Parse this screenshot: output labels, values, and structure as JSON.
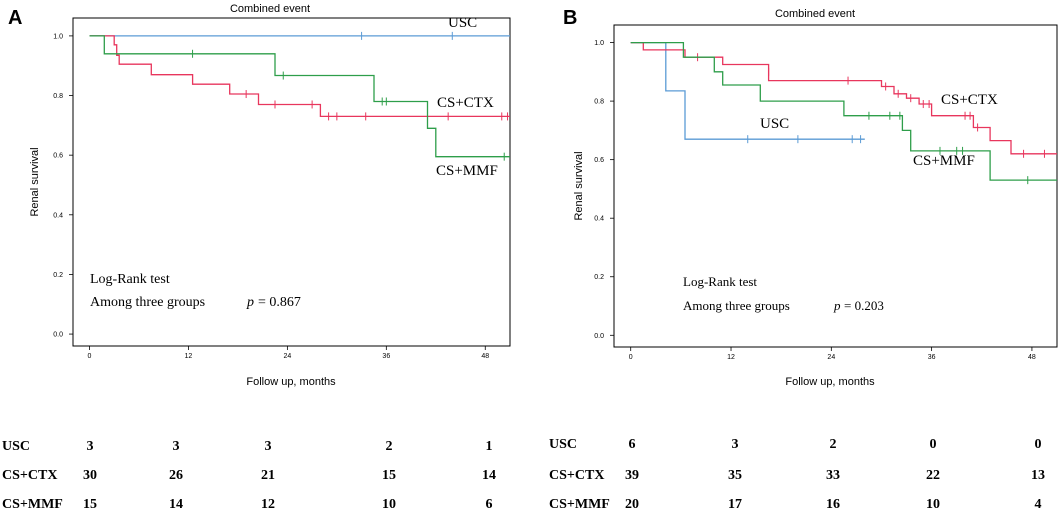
{
  "chart_data": [
    {
      "type": "line",
      "panel": "A",
      "title": "Combined event",
      "xlabel": "Follow up, months",
      "ylabel": "Renal survival",
      "xlim": [
        -2,
        51
      ],
      "ylim": [
        -0.04,
        1.06
      ],
      "xticks": [
        "0",
        "12",
        "24",
        "36",
        "48"
      ],
      "yticks": [
        "0.0",
        "0.2",
        "0.4",
        "0.6",
        "0.8",
        "1.0"
      ],
      "annotation_test": "Log-Rank test",
      "annotation_groups": "Among three groups",
      "p_label": "p",
      "p_value": "= 0.867",
      "series": [
        {
          "name": "USC",
          "color": "#5b9bd5",
          "steps": [
            [
              0,
              1.0
            ],
            [
              51,
              1.0
            ]
          ],
          "censors": [
            [
              33,
              1.0
            ],
            [
              44,
              1.0
            ]
          ]
        },
        {
          "name": "CS+CTX",
          "color": "#e8365d",
          "steps": [
            [
              0,
              1.0
            ],
            [
              3,
              1.0
            ],
            [
              3,
              0.97
            ],
            [
              3.3,
              0.97
            ],
            [
              3.3,
              0.935
            ],
            [
              3.6,
              0.935
            ],
            [
              3.6,
              0.905
            ],
            [
              7.5,
              0.905
            ],
            [
              7.5,
              0.87
            ],
            [
              12.5,
              0.87
            ],
            [
              12.5,
              0.838
            ],
            [
              17,
              0.838
            ],
            [
              17,
              0.805
            ],
            [
              20.5,
              0.805
            ],
            [
              20.5,
              0.77
            ],
            [
              28,
              0.77
            ],
            [
              28,
              0.73
            ],
            [
              51,
              0.73
            ]
          ],
          "censors": [
            [
              19,
              0.805
            ],
            [
              22.5,
              0.77
            ],
            [
              27,
              0.77
            ],
            [
              29,
              0.73
            ],
            [
              30,
              0.73
            ],
            [
              33.5,
              0.73
            ],
            [
              43.5,
              0.73
            ],
            [
              50,
              0.73
            ],
            [
              50.7,
              0.73
            ]
          ]
        },
        {
          "name": "CS+MMF",
          "color": "#2e9e4a",
          "steps": [
            [
              0,
              1.0
            ],
            [
              1.8,
              1.0
            ],
            [
              1.8,
              0.94
            ],
            [
              22.5,
              0.94
            ],
            [
              22.5,
              0.867
            ],
            [
              34.5,
              0.867
            ],
            [
              34.5,
              0.78
            ],
            [
              41,
              0.78
            ],
            [
              41,
              0.69
            ],
            [
              42,
              0.69
            ],
            [
              42,
              0.595
            ],
            [
              51,
              0.595
            ]
          ],
          "censors": [
            [
              12.5,
              0.94
            ],
            [
              23.5,
              0.867
            ],
            [
              35.5,
              0.78
            ],
            [
              36,
              0.78
            ],
            [
              50.3,
              0.595
            ]
          ]
        }
      ],
      "risk_table": {
        "rows": [
          {
            "label": "USC",
            "values": [
              "3",
              "3",
              "3",
              "2",
              "1"
            ]
          },
          {
            "label": "CS+CTX",
            "values": [
              "30",
              "26",
              "21",
              "15",
              "14"
            ]
          },
          {
            "label": "CS+MMF",
            "values": [
              "15",
              "14",
              "12",
              "10",
              "6"
            ]
          }
        ]
      }
    },
    {
      "type": "line",
      "panel": "B",
      "title": "Combined event",
      "xlabel": "Follow  up, months",
      "ylabel": "Renal survival",
      "xlim": [
        -2,
        51
      ],
      "ylim": [
        -0.04,
        1.06
      ],
      "xticks": [
        "0",
        "12",
        "24",
        "36",
        "48"
      ],
      "yticks": [
        "0.0",
        "0.2",
        "0.4",
        "0.6",
        "0.8",
        "1.0"
      ],
      "annotation_test": "Log-Rank test",
      "annotation_groups": "Among three groups",
      "p_label": "p",
      "p_value": "= 0.203",
      "series": [
        {
          "name": "USC",
          "color": "#5b9bd5",
          "steps": [
            [
              0,
              1.0
            ],
            [
              4.2,
              1.0
            ],
            [
              4.2,
              0.835
            ],
            [
              6.5,
              0.835
            ],
            [
              6.5,
              0.67
            ],
            [
              28,
              0.67
            ]
          ],
          "censors": [
            [
              14,
              0.67
            ],
            [
              20,
              0.67
            ],
            [
              26.5,
              0.67
            ],
            [
              27.5,
              0.67
            ]
          ]
        },
        {
          "name": "CS+CTX",
          "color": "#e8365d",
          "steps": [
            [
              0,
              1.0
            ],
            [
              1.5,
              1.0
            ],
            [
              1.5,
              0.975
            ],
            [
              6.5,
              0.975
            ],
            [
              6.5,
              0.95
            ],
            [
              11,
              0.95
            ],
            [
              11,
              0.925
            ],
            [
              16.5,
              0.925
            ],
            [
              16.5,
              0.87
            ],
            [
              30,
              0.87
            ],
            [
              30,
              0.85
            ],
            [
              31.5,
              0.85
            ],
            [
              31.5,
              0.825
            ],
            [
              33,
              0.825
            ],
            [
              33,
              0.81
            ],
            [
              34.5,
              0.81
            ],
            [
              34.5,
              0.79
            ],
            [
              36,
              0.79
            ],
            [
              36,
              0.75
            ],
            [
              41,
              0.75
            ],
            [
              41,
              0.71
            ],
            [
              43,
              0.71
            ],
            [
              43,
              0.665
            ],
            [
              45.5,
              0.665
            ],
            [
              45.5,
              0.62
            ],
            [
              51,
              0.62
            ]
          ],
          "censors": [
            [
              8,
              0.95
            ],
            [
              16.5,
              0.9
            ],
            [
              26,
              0.87
            ],
            [
              30.5,
              0.85
            ],
            [
              32,
              0.825
            ],
            [
              33.5,
              0.81
            ],
            [
              35,
              0.79
            ],
            [
              35.7,
              0.79
            ],
            [
              40,
              0.75
            ],
            [
              40.6,
              0.75
            ],
            [
              41.5,
              0.71
            ],
            [
              47,
              0.62
            ],
            [
              49.5,
              0.62
            ]
          ]
        },
        {
          "name": "CS+MMF",
          "color": "#2e9e4a",
          "steps": [
            [
              0,
              1.0
            ],
            [
              6.3,
              1.0
            ],
            [
              6.3,
              0.95
            ],
            [
              10,
              0.95
            ],
            [
              10,
              0.9
            ],
            [
              11,
              0.9
            ],
            [
              11,
              0.855
            ],
            [
              15.5,
              0.855
            ],
            [
              15.5,
              0.8
            ],
            [
              25.5,
              0.8
            ],
            [
              25.5,
              0.75
            ],
            [
              32.5,
              0.75
            ],
            [
              32.5,
              0.7
            ],
            [
              33.5,
              0.7
            ],
            [
              33.5,
              0.63
            ],
            [
              43,
              0.63
            ],
            [
              43,
              0.53
            ],
            [
              51,
              0.53
            ]
          ],
          "censors": [
            [
              28.5,
              0.75
            ],
            [
              31,
              0.75
            ],
            [
              32.2,
              0.75
            ],
            [
              37,
              0.63
            ],
            [
              39,
              0.63
            ],
            [
              39.7,
              0.63
            ],
            [
              47.5,
              0.53
            ]
          ]
        }
      ],
      "risk_table": {
        "rows": [
          {
            "label": "USC",
            "values": [
              "6",
              "3",
              "2",
              "0",
              "0"
            ]
          },
          {
            "label": "CS+CTX",
            "values": [
              "39",
              "35",
              "33",
              "22",
              "13"
            ]
          },
          {
            "label": "CS+MMF",
            "values": [
              "20",
              "17",
              "16",
              "10",
              "4"
            ]
          }
        ]
      }
    }
  ]
}
